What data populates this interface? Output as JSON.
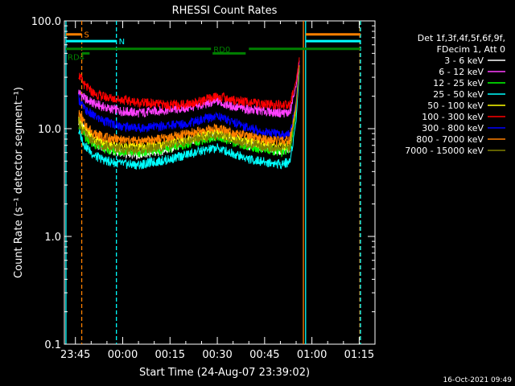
{
  "chart_data": {
    "type": "line",
    "title": "RHESSI Count Rates",
    "xlabel": "Start Time (24-Aug-07 23:39:02)",
    "ylabel": "Count Rate (s⁻¹ detector segment⁻¹)",
    "yscale": "log",
    "ylim": [
      0.1,
      100
    ],
    "xlim_minutes": [
      -18.5,
      80.0
    ],
    "x_unit": "minutes after 00:00 (24/25-Aug-07)",
    "yticks": [
      "0.1",
      "1.0",
      "10.0",
      "100.0"
    ],
    "xticks": [
      {
        "label": "23:45",
        "x": -15
      },
      {
        "label": "00:00",
        "x": 0
      },
      {
        "label": "00:15",
        "x": 15
      },
      {
        "label": "00:30",
        "x": 30
      },
      {
        "label": "00:45",
        "x": 45
      },
      {
        "label": "01:00",
        "x": 60
      },
      {
        "label": "01:15",
        "x": 75
      }
    ],
    "legend_header": [
      "Det 1f,3f,4f,5f,6f,9f,",
      "FDecim 1, Att 0"
    ],
    "legend_position": "right",
    "series": [
      {
        "name": "3 - 6 keV",
        "color": "#ffffff",
        "x": [
          -14,
          -12,
          -9,
          -5,
          0,
          5,
          10,
          15,
          20,
          25,
          30,
          35,
          40,
          45,
          50,
          53,
          55,
          56
        ],
        "y": [
          12,
          9.5,
          7.5,
          6.5,
          6.0,
          5.7,
          6.0,
          6.5,
          7.5,
          8.2,
          8.8,
          7.8,
          7.0,
          6.5,
          6.2,
          6.5,
          15,
          38
        ]
      },
      {
        "name": "6 - 12 keV",
        "color": "#ff40ff",
        "x": [
          -14,
          -12,
          -9,
          -5,
          0,
          5,
          10,
          15,
          20,
          25,
          30,
          35,
          40,
          45,
          50,
          53,
          55,
          56
        ],
        "y": [
          22,
          19,
          17,
          15.5,
          14.5,
          14,
          14.5,
          15,
          15.5,
          16.5,
          18,
          16,
          15,
          14.5,
          14,
          14,
          25,
          42
        ]
      },
      {
        "name": "12 - 25 keV",
        "color": "#00ff00",
        "x": [
          -14,
          -12,
          -9,
          -5,
          0,
          5,
          10,
          15,
          20,
          25,
          30,
          35,
          40,
          45,
          50,
          53,
          55,
          56
        ],
        "y": [
          11,
          8.5,
          7.0,
          6.4,
          6.1,
          6.0,
          6.2,
          6.6,
          7.2,
          7.8,
          8.5,
          7.5,
          6.8,
          6.4,
          6.1,
          6.3,
          14,
          36
        ]
      },
      {
        "name": "25 - 50 keV",
        "color": "#00ffff",
        "x": [
          -14,
          -12,
          -9,
          -5,
          0,
          5,
          10,
          15,
          20,
          25,
          30,
          35,
          40,
          45,
          50,
          53,
          55,
          56
        ],
        "y": [
          9.5,
          7.0,
          5.6,
          5.0,
          4.7,
          4.6,
          4.9,
          5.2,
          5.7,
          6.2,
          6.6,
          5.9,
          5.2,
          4.9,
          4.7,
          4.9,
          12,
          35
        ]
      },
      {
        "name": "50 - 100 keV",
        "color": "#ffff00",
        "x": [
          -14,
          -12,
          -9,
          -5,
          0,
          5,
          10,
          15,
          20,
          25,
          30,
          35,
          40,
          45,
          50,
          53,
          55,
          56
        ],
        "y": [
          12.5,
          10,
          8.0,
          7.2,
          6.8,
          6.7,
          7.0,
          7.4,
          8.0,
          8.6,
          9.2,
          8.3,
          7.6,
          7.2,
          6.9,
          7.1,
          16,
          38
        ]
      },
      {
        "name": "100 - 300 keV",
        "color": "#ff0000",
        "x": [
          -14,
          -12,
          -9,
          -5,
          0,
          5,
          10,
          15,
          20,
          25,
          30,
          35,
          40,
          45,
          50,
          53,
          55,
          56
        ],
        "y": [
          32,
          25,
          21,
          19.5,
          18.5,
          17.5,
          17,
          16.5,
          17,
          18,
          20,
          18.5,
          17.5,
          16.8,
          16.5,
          16.5,
          28,
          45
        ]
      },
      {
        "name": "300 - 800 keV",
        "color": "#0000ff",
        "x": [
          -14,
          -12,
          -9,
          -5,
          0,
          5,
          10,
          15,
          20,
          25,
          30,
          35,
          40,
          45,
          50,
          53,
          55,
          56
        ],
        "y": [
          19,
          15,
          13,
          11.5,
          10.5,
          10.2,
          10.4,
          10.8,
          11.2,
          12.0,
          13.2,
          11.5,
          10.2,
          9.3,
          8.8,
          8.8,
          18,
          40
        ]
      },
      {
        "name": "800 - 7000 keV",
        "color": "#ff8000",
        "x": [
          -14,
          -12,
          -9,
          -5,
          0,
          5,
          10,
          15,
          20,
          25,
          30,
          35,
          40,
          45,
          50,
          53,
          55,
          56
        ],
        "y": [
          14,
          11,
          9.0,
          8.2,
          7.8,
          7.7,
          7.9,
          8.3,
          8.9,
          9.5,
          10.2,
          9.2,
          8.4,
          7.9,
          7.6,
          7.8,
          17,
          39
        ]
      },
      {
        "name": "7000 - 15000 keV",
        "color": "#808000",
        "x": [
          -14,
          -12,
          -9,
          -5,
          0,
          5,
          10,
          15,
          20,
          25,
          30,
          35,
          40,
          45,
          50,
          53,
          55,
          56
        ],
        "y": [
          11.5,
          9.0,
          7.4,
          6.8,
          6.4,
          6.3,
          6.6,
          7.0,
          7.6,
          8.1,
          8.8,
          7.9,
          7.2,
          6.8,
          6.5,
          6.7,
          15,
          37
        ]
      }
    ],
    "vlines": [
      {
        "x": -18,
        "color": "#00ffff",
        "dash": false
      },
      {
        "x": -13,
        "color": "#ff8000",
        "dash": true
      },
      {
        "x": -2,
        "color": "#00ffff",
        "dash": true
      },
      {
        "x": 57.3,
        "color": "#ff8000",
        "dash": false
      },
      {
        "x": 58.0,
        "color": "#00ffff",
        "dash": false
      },
      {
        "x": 75.2,
        "color": "#ff8000",
        "dash": true
      },
      {
        "x": 75.4,
        "color": "#00ffff",
        "dash": true
      }
    ],
    "flags": [
      {
        "label": "S",
        "color": "#ff8000",
        "y": 75,
        "segments": [
          [
            -18,
            -13
          ],
          [
            58,
            75.4
          ]
        ]
      },
      {
        "label": "N",
        "color": "#00ffff",
        "y": 65,
        "segments": [
          [
            -18,
            -2
          ],
          [
            58,
            75.4
          ]
        ]
      },
      {
        "label": "RD0",
        "color": "#008000",
        "y": 55,
        "segments": [
          [
            -18,
            28
          ],
          [
            40,
            75.4
          ]
        ]
      },
      {
        "label": "RD4",
        "color": "#008000",
        "y": 50,
        "segments": [
          [
            -13,
            -10.5
          ],
          [
            28.5,
            39
          ]
        ]
      }
    ]
  },
  "footer_timestamp": "16-Oct-2021 09:49"
}
